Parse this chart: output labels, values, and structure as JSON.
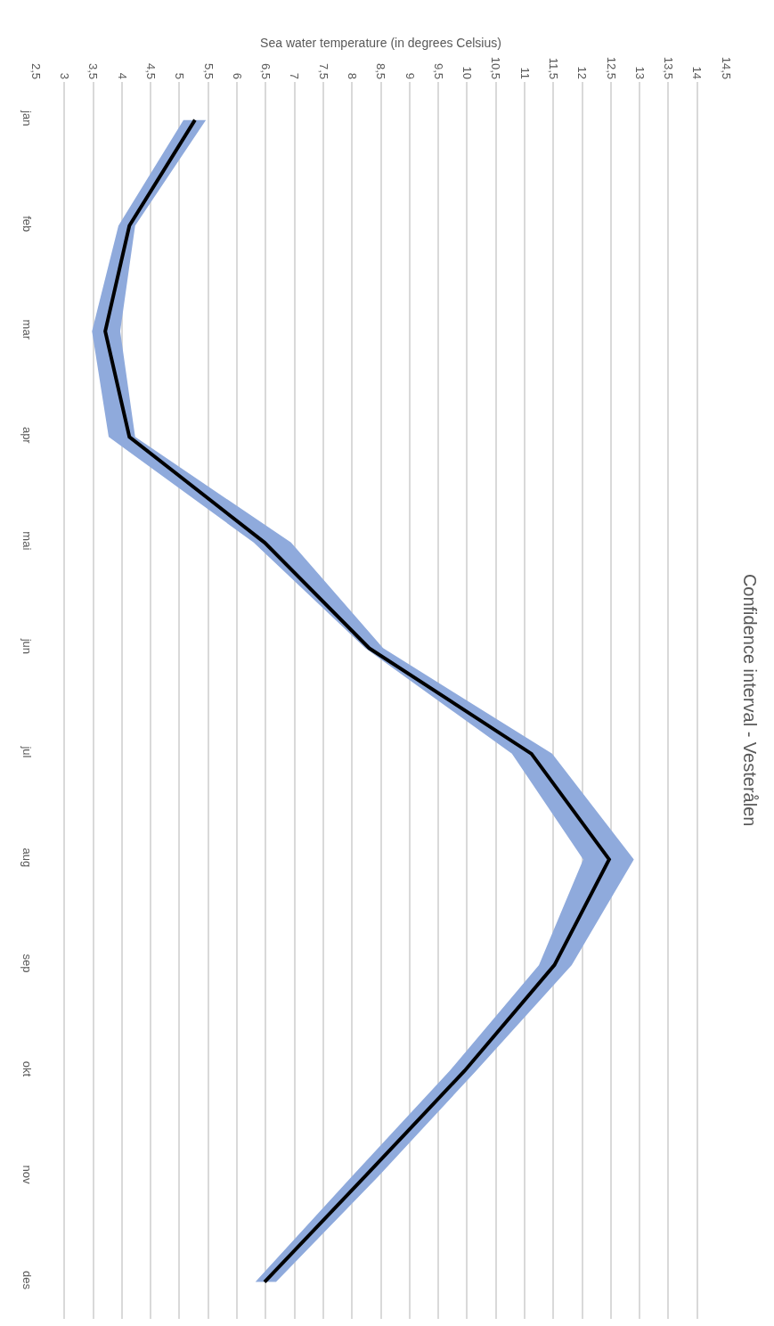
{
  "chart_data": {
    "type": "line",
    "orientation": "horizontal",
    "title": "Confidence interval - Vesterålen",
    "xlabel": "Sea water temperature (in degrees Celsius)",
    "categories": [
      "jan",
      "feb",
      "mar",
      "apr",
      "mai",
      "jun",
      "jul",
      "aug",
      "sep",
      "okt",
      "nov",
      "des"
    ],
    "series": [
      {
        "color": "#000000",
        "values": [
          5.27,
          4.13,
          3.71,
          4.13,
          6.48,
          8.3,
          11.12,
          12.47,
          11.52,
          9.96,
          8.23,
          6.48
        ],
        "lower": [
          5.07,
          3.94,
          3.48,
          3.77,
          6.29,
          8.23,
          10.78,
          12.02,
          11.25,
          9.7,
          8.0,
          6.32
        ],
        "upper": [
          5.46,
          4.23,
          3.97,
          4.23,
          6.94,
          8.54,
          11.48,
          12.9,
          11.82,
          10.16,
          8.46,
          6.68
        ]
      }
    ],
    "xlim": [
      2.5,
      14.5
    ],
    "xticks": [
      {
        "value": 2.5,
        "label": "2,5"
      },
      3,
      {
        "value": 3.5,
        "label": "3,5"
      },
      4,
      {
        "value": 4.5,
        "label": "4,5"
      },
      5,
      {
        "value": 5.5,
        "label": "5,5"
      },
      6,
      {
        "value": 6.5,
        "label": "6,5"
      },
      7,
      {
        "value": 7.5,
        "label": "7,5"
      },
      8,
      {
        "value": 8.5,
        "label": "8,5"
      },
      9,
      {
        "value": 9.5,
        "label": "9,5"
      },
      10,
      {
        "value": 10.5,
        "label": "10,5"
      },
      11,
      {
        "value": 11.5,
        "label": "11,5"
      },
      12,
      {
        "value": 12.5,
        "label": "12,5"
      },
      13,
      {
        "value": 13.5,
        "label": "13,5"
      },
      14,
      {
        "value": 14.5,
        "label": "14,5"
      }
    ],
    "grid": "x",
    "marker": "none",
    "line_style": "solid"
  }
}
